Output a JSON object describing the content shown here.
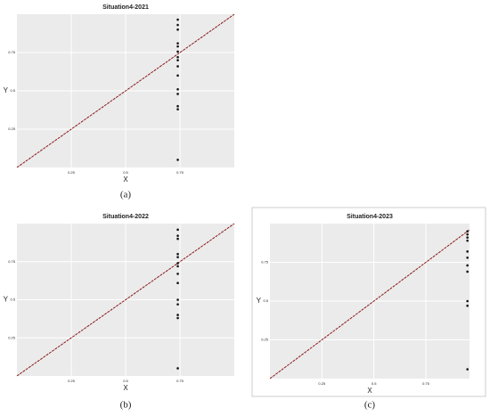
{
  "chart_data": [
    {
      "type": "scatter",
      "title": "Situation4-2021",
      "x_label": "X",
      "y_label": "Y",
      "caption": "(a)",
      "xlim": [
        0,
        1
      ],
      "ylim": [
        0,
        1
      ],
      "xticks": [
        0.25,
        0.5,
        0.75
      ],
      "yticks": [
        0.25,
        0.5,
        0.75
      ],
      "grid": true,
      "series": [
        {
          "color": "#111111",
          "x": [
            0.74,
            0.74,
            0.74,
            0.74,
            0.74,
            0.74,
            0.74,
            0.74,
            0.74,
            0.74,
            0.74,
            0.74,
            0.74,
            0.74,
            0.74
          ],
          "values": [
            0.965,
            0.93,
            0.9,
            0.81,
            0.79,
            0.756,
            0.72,
            0.7,
            0.66,
            0.6,
            0.51,
            0.48,
            0.4,
            0.38,
            0.05
          ]
        }
      ],
      "reference_line": {
        "color": "#8b1a1a",
        "x": [
          0,
          1
        ],
        "y": [
          0,
          1
        ]
      }
    },
    {
      "type": "scatter",
      "title": "Situation4-2022",
      "x_label": "X",
      "y_label": "Y",
      "caption": "(b)",
      "xlim": [
        0,
        1
      ],
      "ylim": [
        0,
        1
      ],
      "xticks": [
        0.25,
        0.5,
        0.75
      ],
      "yticks": [
        0.25,
        0.5,
        0.75
      ],
      "grid": true,
      "series": [
        {
          "color": "#111111",
          "x": [
            0.74,
            0.74,
            0.74,
            0.74,
            0.74,
            0.74,
            0.74,
            0.74,
            0.74,
            0.74,
            0.74,
            0.74,
            0.74,
            0.74
          ],
          "values": [
            0.96,
            0.92,
            0.9,
            0.8,
            0.78,
            0.74,
            0.72,
            0.67,
            0.61,
            0.5,
            0.47,
            0.4,
            0.38,
            0.05
          ]
        }
      ],
      "reference_line": {
        "color": "#8b1a1a",
        "x": [
          0,
          1
        ],
        "y": [
          0,
          1
        ]
      }
    },
    {
      "type": "scatter",
      "title": "Situation4-2023",
      "x_label": "X",
      "y_label": "Y",
      "caption": "(c)",
      "xlim": [
        0,
        0.96
      ],
      "ylim": [
        0,
        1
      ],
      "xticks": [
        0.25,
        0.5,
        0.75
      ],
      "yticks": [
        0.25,
        0.5,
        0.75
      ],
      "grid": true,
      "series": [
        {
          "color": "#111111",
          "x": [
            0.95,
            0.95,
            0.95,
            0.95,
            0.95,
            0.95,
            0.95,
            0.95,
            0.95,
            0.95,
            0.95
          ],
          "values": [
            0.95,
            0.93,
            0.91,
            0.89,
            0.82,
            0.78,
            0.73,
            0.69,
            0.5,
            0.47,
            0.06
          ]
        }
      ],
      "reference_line": {
        "color": "#8b1a1a",
        "x": [
          0,
          0.96
        ],
        "y": [
          0,
          0.96
        ]
      }
    }
  ]
}
